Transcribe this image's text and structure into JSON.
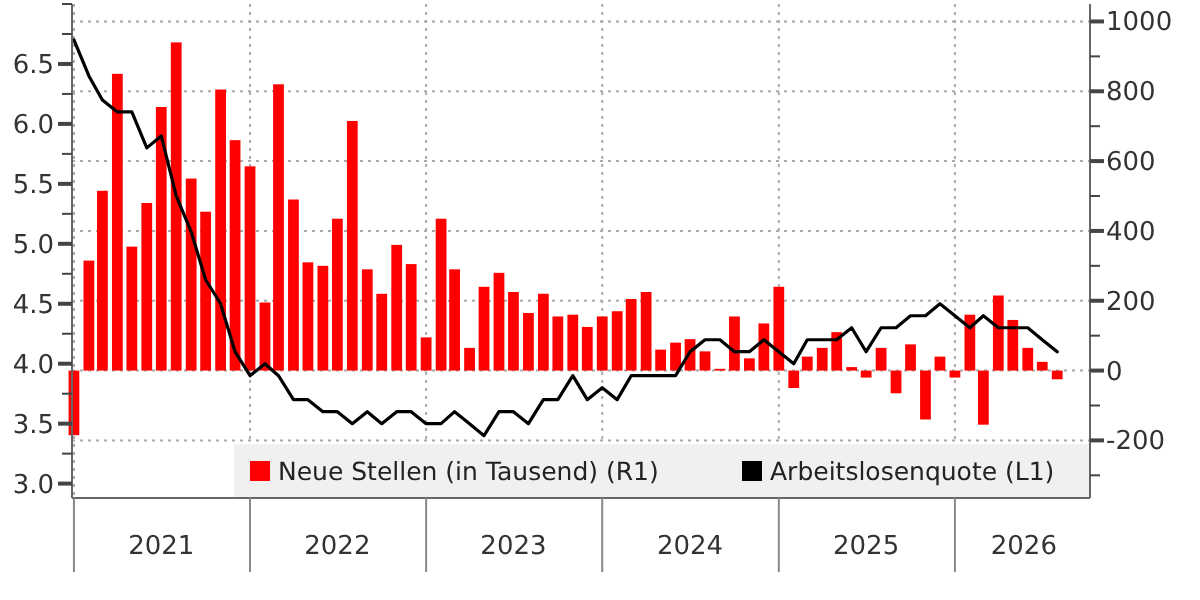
{
  "chart_data": {
    "type": "bar",
    "x": [
      "2021-01",
      "2021-02",
      "2021-03",
      "2021-04",
      "2021-05",
      "2021-06",
      "2021-07",
      "2021-08",
      "2021-09",
      "2021-10",
      "2021-11",
      "2021-12",
      "2022-01",
      "2022-02",
      "2022-03",
      "2022-04",
      "2022-05",
      "2022-06",
      "2022-07",
      "2022-08",
      "2022-09",
      "2022-10",
      "2022-11",
      "2022-12",
      "2023-01",
      "2023-02",
      "2023-03",
      "2023-04",
      "2023-05",
      "2023-06",
      "2023-07",
      "2023-08",
      "2023-09",
      "2023-10",
      "2023-11",
      "2023-12",
      "2024-01",
      "2024-02",
      "2024-03",
      "2024-04",
      "2024-05",
      "2024-06",
      "2024-07",
      "2024-08",
      "2024-09",
      "2024-10",
      "2024-11",
      "2024-12",
      "2025-01",
      "2025-02",
      "2025-03",
      "2025-04",
      "2025-05",
      "2025-06",
      "2025-07",
      "2025-08",
      "2025-09",
      "2025-10",
      "2025-11",
      "2025-12",
      "2026-01",
      "2026-02",
      "2026-03",
      "2026-04",
      "2026-05",
      "2026-06",
      "2026-07",
      "2026-08"
    ],
    "series": [
      {
        "name": "Neue Stellen (in Tausend) (R1)",
        "axis": "y2",
        "color": "#ff0000",
        "values": [
          -185,
          315,
          515,
          850,
          355,
          480,
          755,
          940,
          550,
          455,
          805,
          660,
          585,
          195,
          820,
          490,
          310,
          300,
          435,
          715,
          290,
          220,
          360,
          305,
          95,
          435,
          290,
          65,
          240,
          280,
          225,
          165,
          220,
          155,
          160,
          125,
          155,
          170,
          205,
          225,
          60,
          80,
          90,
          55,
          5,
          155,
          35,
          135,
          240,
          -50,
          40,
          65,
          110,
          10,
          -20,
          65,
          -65,
          75,
          -140,
          40,
          -20,
          160,
          -155,
          215,
          145,
          65,
          25,
          -25
        ]
      },
      {
        "name": "Arbeitslosenquote (L1)",
        "type": "line",
        "axis": "y",
        "color": "#000000",
        "values": [
          6.7,
          6.4,
          6.2,
          6.1,
          6.1,
          5.8,
          5.9,
          5.4,
          5.1,
          4.7,
          4.5,
          4.1,
          3.9,
          4.0,
          3.9,
          3.7,
          3.7,
          3.6,
          3.6,
          3.5,
          3.6,
          3.5,
          3.6,
          3.6,
          3.5,
          3.5,
          3.6,
          3.5,
          3.4,
          3.6,
          3.6,
          3.5,
          3.7,
          3.7,
          3.9,
          3.7,
          3.8,
          3.7,
          3.9,
          3.9,
          3.9,
          3.9,
          4.1,
          4.2,
          4.2,
          4.1,
          4.1,
          4.2,
          4.1,
          4.0,
          4.2,
          4.2,
          4.2,
          4.3,
          4.1,
          4.3,
          4.3,
          4.4,
          4.4,
          4.5,
          4.4,
          4.3,
          4.4,
          4.3,
          4.3,
          4.3,
          4.2,
          4.1
        ]
      }
    ],
    "xlim": [
      "2020-12-28",
      "2026-10-08"
    ],
    "xticks": [
      {
        "value": "2021-01-01",
        "label": null
      },
      {
        "value": "2021-07-01",
        "label": "2021"
      },
      {
        "value": "2022-01-01",
        "label": null
      },
      {
        "value": "2022-07-01",
        "label": "2022"
      },
      {
        "value": "2023-01-01",
        "label": null
      },
      {
        "value": "2023-07-01",
        "label": "2023"
      },
      {
        "value": "2024-01-01",
        "label": null
      },
      {
        "value": "2024-07-01",
        "label": "2024"
      },
      {
        "value": "2025-01-01",
        "label": null
      },
      {
        "value": "2025-07-01",
        "label": "2025"
      },
      {
        "value": "2026-01-01",
        "label": null
      },
      {
        "value": "2026-05-24",
        "label": "2026"
      }
    ],
    "ylim": [
      2.88,
      7.0
    ],
    "yticks": [
      {
        "value": 3,
        "label": "3.0"
      },
      {
        "value": 3.25,
        "label": null
      },
      {
        "value": 3.5,
        "label": "3.5"
      },
      {
        "value": 3.75,
        "label": null
      },
      {
        "value": 4,
        "label": "4.0"
      },
      {
        "value": 4.25,
        "label": null
      },
      {
        "value": 4.5,
        "label": "4.5"
      },
      {
        "value": 4.75,
        "label": null
      },
      {
        "value": 5,
        "label": "5.0"
      },
      {
        "value": 5.25,
        "label": null
      },
      {
        "value": 5.5,
        "label": "5.5"
      },
      {
        "value": 5.75,
        "label": null
      },
      {
        "value": 6,
        "label": "6.0"
      },
      {
        "value": 6.25,
        "label": null
      },
      {
        "value": 6.5,
        "label": "6.5"
      },
      {
        "value": 6.75,
        "label": null
      },
      {
        "value": 7,
        "label": null
      }
    ],
    "y2lim": [
      -365,
      1050
    ],
    "y2ticks": [
      {
        "value": -300,
        "label": null
      },
      -200,
      {
        "value": -100,
        "label": null
      },
      0,
      {
        "value": 100,
        "label": null
      },
      200,
      {
        "value": 300,
        "label": null
      },
      400,
      {
        "value": 500,
        "label": null
      },
      600,
      {
        "value": 700,
        "label": null
      },
      800,
      {
        "value": 900,
        "label": null
      },
      1000
    ],
    "grid": true,
    "legend": "bottom right"
  }
}
